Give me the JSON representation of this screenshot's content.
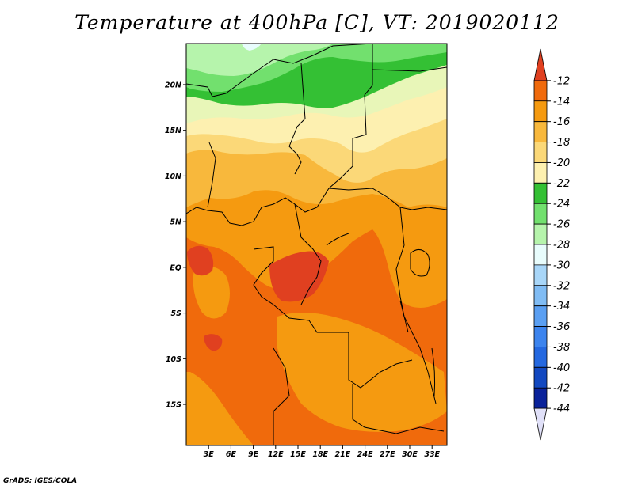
{
  "title": "Temperature at 400hPa [C], VT: 2019020112",
  "credit": "GrADS: IGES/COLA",
  "map": {
    "lat_labels": [
      "20N",
      "15N",
      "10N",
      "5N",
      "EQ",
      "5S",
      "10S",
      "15S"
    ],
    "lon_labels": [
      "3E",
      "6E",
      "9E",
      "12E",
      "15E",
      "18E",
      "21E",
      "24E",
      "27E",
      "30E",
      "33E"
    ],
    "lat_range": [
      -19.5,
      24.5
    ],
    "lon_range": [
      0,
      35
    ]
  },
  "colorbar": {
    "levels": [
      "-12",
      "-14",
      "-16",
      "-18",
      "-20",
      "-22",
      "-24",
      "-26",
      "-28",
      "-30",
      "-32",
      "-34",
      "-36",
      "-38",
      "-40",
      "-42",
      "-44"
    ],
    "colors": [
      "#e04020",
      "#f06a0c",
      "#f59a10",
      "#f8b83c",
      "#fbd878",
      "#fdf0b0",
      "#34c034",
      "#72e06e",
      "#b6f4ac",
      "#e8fcfc",
      "#a8d6f8",
      "#80bcf4",
      "#5a9ff2",
      "#3c84ee",
      "#2468e0",
      "#1248c0",
      "#0a229a",
      "#e0e0f8"
    ]
  }
}
